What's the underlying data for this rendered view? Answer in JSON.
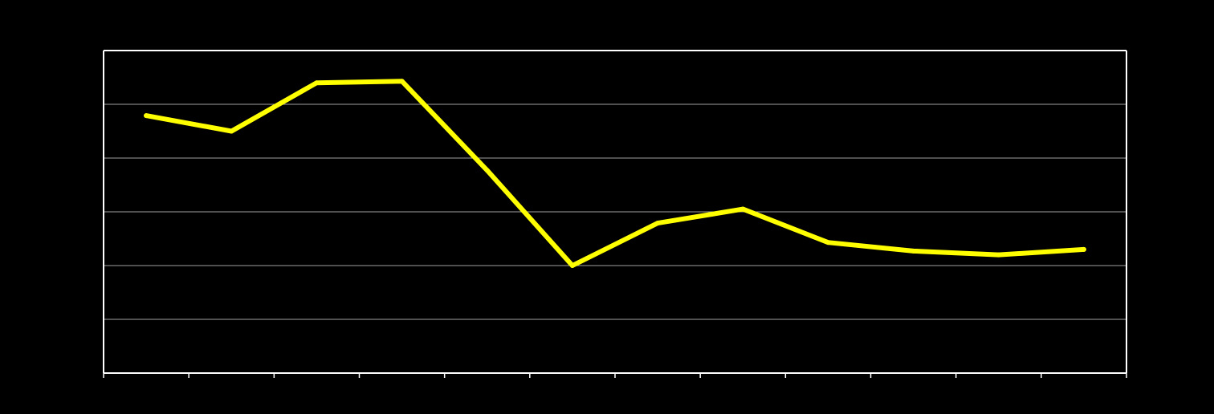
{
  "colors": {
    "background": "#000000",
    "series": "#ffff00",
    "gridline": "#a0a0a0",
    "axis": "#ffffff"
  },
  "chart_data": {
    "type": "line",
    "title": "",
    "xlabel": "",
    "ylabel": "",
    "categories": [
      "",
      "",
      "",
      "",
      "",
      "",
      "",
      "",
      "",
      "",
      "",
      ""
    ],
    "ylim": [
      0,
      6
    ],
    "y_gridlines": [
      1,
      2,
      3,
      4,
      5
    ],
    "grid": true,
    "legend": "none",
    "series": [
      {
        "values": [
          4.79,
          4.5,
          5.4,
          5.43,
          3.77,
          2.0,
          2.79,
          3.05,
          2.43,
          2.27,
          2.2,
          2.3
        ]
      }
    ]
  }
}
